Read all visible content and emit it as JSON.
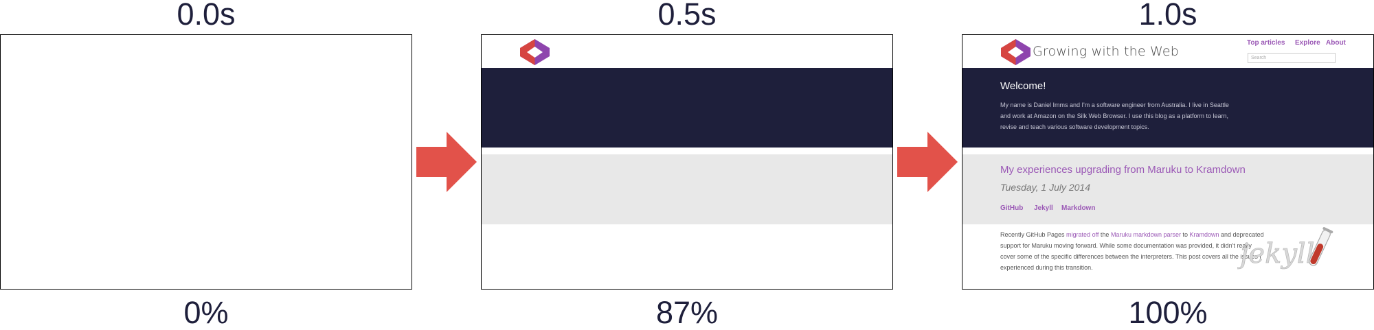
{
  "frames": [
    {
      "time": "0.0s",
      "percent": "0%"
    },
    {
      "time": "0.5s",
      "percent": "87%"
    },
    {
      "time": "1.0s",
      "percent": "100%"
    }
  ],
  "site": {
    "title": "Growing with the Web",
    "nav": [
      "Top articles",
      "Explore",
      "About"
    ],
    "search_placeholder": "Search"
  },
  "hero": {
    "title": "Welcome!",
    "text": "My name is Daniel Imms and I'm a software engineer from Australia. I live in Seattle and work at Amazon on the Silk Web Browser. I use this blog as a platform to learn, revise and teach various software development topics."
  },
  "post": {
    "title": "My experiences upgrading from Maruku to Kramdown",
    "date": "Tuesday, 1 July 2014",
    "tags": [
      "GitHub",
      "Jekyll",
      "Markdown"
    ],
    "body": {
      "p1": "Recently GitHub Pages ",
      "link1": "migrated off",
      "p2": " the ",
      "link2": "Maruku markdown parser",
      "p3": " to ",
      "link3": "Kramdown",
      "p4": " and deprecated support for Maruku moving forward. While some documentation was provided, it didn't really cover some of the specific differences between the interpreters. This post covers all the issues I experienced during this transition."
    },
    "art_text": "jekyll"
  },
  "colors": {
    "label": "#1e1f3b",
    "arrow": "#e2524a",
    "hero_bg": "#1e1f3b",
    "strip_bg": "#e8e8e8",
    "accent": "#9b59b6"
  }
}
